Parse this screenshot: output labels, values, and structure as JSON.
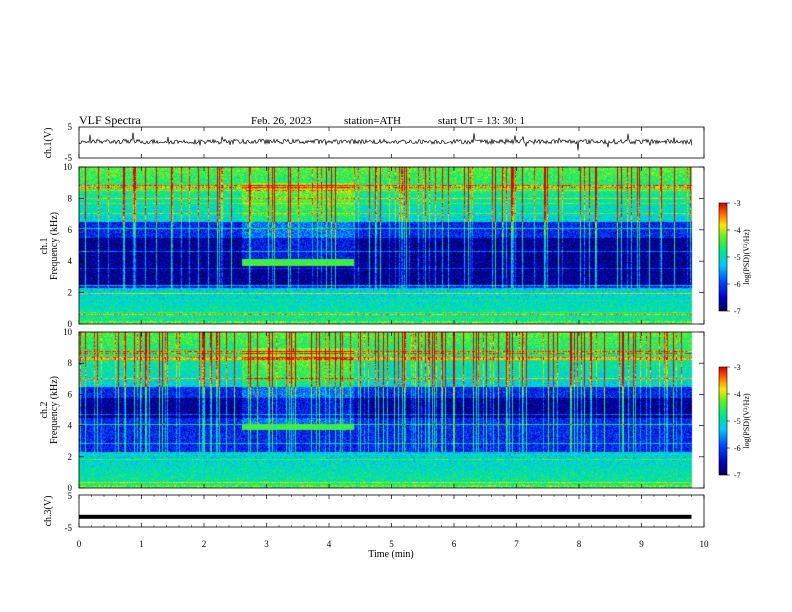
{
  "header": {
    "title": "VLF  Spectra",
    "date": "Feb. 26, 2023",
    "station": "station=ATH",
    "start": "start  UT  =   13: 30: 1"
  },
  "chart_data": [
    {
      "type": "line",
      "panel": "ch1-waveform",
      "ylabel": "ch.1(V)",
      "ylim": [
        -5,
        5
      ],
      "yticks": [
        "5",
        "-5"
      ],
      "xlim": [
        0,
        10
      ],
      "description_values": {
        "baseline_V": 0.3,
        "noise_amplitude_V": 1.5,
        "data_end_min": 9.8
      }
    },
    {
      "type": "heatmap",
      "panel": "ch1-spectrogram",
      "ylabel": "ch.1\nFrequency (kHz)",
      "ylim": [
        0,
        10
      ],
      "yticks": [
        "0",
        "2",
        "4",
        "6",
        "8",
        "10"
      ],
      "xlim": [
        0,
        10
      ],
      "colorbar": {
        "label": "log(PSD)(V²/Hz)",
        "range": [
          -7,
          -3
        ],
        "ticks": [
          "-3",
          "-4",
          "-5",
          "-6",
          "-7"
        ]
      },
      "features": {
        "high_band_kHz": [
          6.5,
          10
        ],
        "low_band_kHz": [
          0,
          2.3
        ],
        "dark_band_kHz": [
          2.5,
          5.5
        ],
        "tone_kHz": 3.9,
        "tone_span_min": [
          2.6,
          4.4
        ],
        "data_end_min": 9.8
      }
    },
    {
      "type": "heatmap",
      "panel": "ch2-spectrogram",
      "ylabel": "ch.2\nFrequency (kHz)",
      "ylim": [
        0,
        10
      ],
      "yticks": [
        "0",
        "2",
        "4",
        "6",
        "8",
        "10"
      ],
      "xlim": [
        0,
        10
      ],
      "colorbar": {
        "label": "log(PSD)(V²/Hz)",
        "range": [
          -7,
          -3
        ],
        "ticks": [
          "-3",
          "-4",
          "-5",
          "-6",
          "-7"
        ]
      },
      "features": {
        "high_band_kHz": [
          6.5,
          10
        ],
        "low_band_kHz": [
          0,
          2.3
        ],
        "dark_band_kHz": [
          4.5,
          5.8
        ],
        "tone_kHz": 3.9,
        "tone_span_min": [
          2.6,
          4.4
        ],
        "data_end_min": 9.8
      }
    },
    {
      "type": "line",
      "panel": "ch3-waveform",
      "ylabel": "ch.3(V)",
      "ylim": [
        -5,
        5
      ],
      "yticks": [
        "5",
        "-5"
      ],
      "xlim": [
        0,
        10
      ],
      "description_values": {
        "constant_V": -1.8,
        "data_end_min": 9.8
      }
    }
  ],
  "xaxis": {
    "label": "Time  (min)",
    "ticks": [
      "0",
      "1",
      "2",
      "3",
      "4",
      "5",
      "6",
      "7",
      "8",
      "9",
      "10"
    ]
  }
}
